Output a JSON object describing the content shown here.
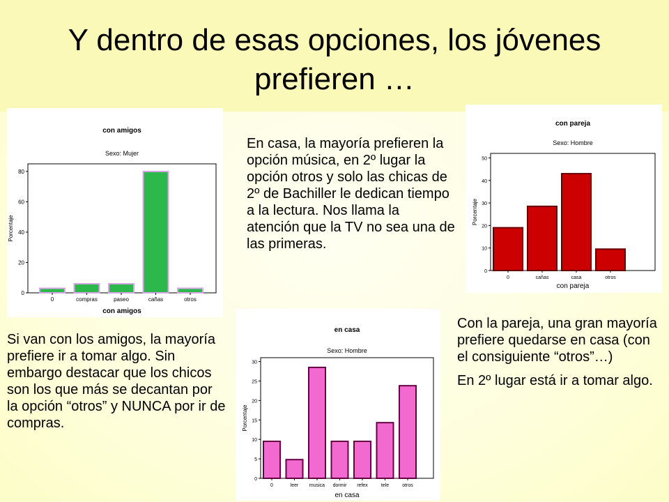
{
  "slide": {
    "title": "Y dentro de esas opciones, los jóvenes prefieren …",
    "text_casa": "En casa, la mayoría prefieren la opción música, en 2º lugar la opción otros y solo las chicas de 2º de Bachiller le dedican tiempo a la lectura. Nos llama la atención que la TV no sea una de las primeras.",
    "text_amigos": "Si van con los amigos, la mayoría prefiere ir a tomar algo. Sin embargo destacar que los chicos son los que más se decantan por la opción “otros” y NUNCA por ir de compras.",
    "text_pareja_1": "Con la pareja, una gran mayoría prefiere quedarse en casa (con el consiguiente “otros”…)",
    "text_pareja_2": "En 2º lugar está ir a tomar algo."
  },
  "chart_data": [
    {
      "type": "bar",
      "title": "con amigos",
      "subtitle": "Sexo: Mujer",
      "xlabel": "con amigos",
      "ylabel": "Porcentaje",
      "categories": [
        "0",
        "compras",
        "paseo",
        "cañas",
        "otros"
      ],
      "values": [
        3,
        6,
        6,
        80,
        3
      ],
      "ylim": [
        0,
        85
      ],
      "yticks": [
        0,
        20,
        40,
        60,
        80
      ],
      "bar_color": "#2db84b",
      "bar_border": "#d9a6e8"
    },
    {
      "type": "bar",
      "title": "con pareja",
      "subtitle": "Sexo: Hombre",
      "xlabel": "con pareja",
      "ylabel": "Porcentaje",
      "categories": [
        "0",
        "cañas",
        "casa",
        "otros"
      ],
      "values": [
        19,
        28.5,
        43,
        9.5
      ],
      "ylim": [
        0,
        52
      ],
      "yticks": [
        0,
        10,
        20,
        30,
        40,
        50
      ],
      "bar_color": "#cc0000",
      "bar_border": "#660000"
    },
    {
      "type": "bar",
      "title": "en casa",
      "subtitle": "Sexo: Hombre",
      "xlabel": "en casa",
      "ylabel": "Porcentaje",
      "categories": [
        "0",
        "leer",
        "musica",
        "dormir",
        "refex",
        "tele",
        "otros"
      ],
      "values": [
        9.5,
        4.8,
        28.5,
        9.5,
        9.5,
        14.3,
        23.8
      ],
      "ylim": [
        0,
        31
      ],
      "yticks": [
        0,
        5,
        10,
        15,
        20,
        25,
        30
      ],
      "bar_color": "#f26ad0",
      "bar_border": "#660044"
    }
  ]
}
